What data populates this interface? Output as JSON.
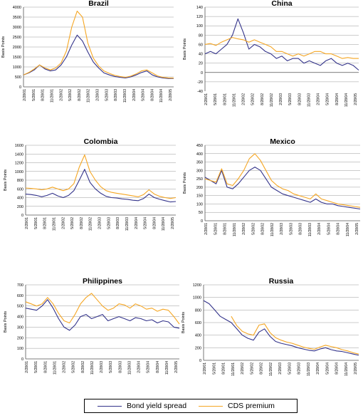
{
  "chart_data": [
    {
      "type": "line",
      "title": "Brazil",
      "ylabel": "Basis Points",
      "ylim": [
        0,
        4000
      ],
      "yticks": [
        "0",
        "500",
        "1000",
        "1500",
        "2000",
        "2500",
        "3000",
        "3500",
        "4000"
      ],
      "xticks": [
        "2/28/01",
        "5/28/01",
        "8/28/01",
        "11/28/01",
        "2/28/02",
        "5/28/02",
        "8/28/02",
        "11/28/02",
        "2/28/03",
        "5/28/03",
        "8/28/03",
        "11/28/03",
        "2/28/04",
        "5/28/04",
        "8/28/04",
        "11/28/04",
        "2/28/05"
      ],
      "series": [
        {
          "name": "Bond yield spread",
          "values": [
            600,
            700,
            850,
            1100,
            900,
            800,
            850,
            1100,
            1500,
            2100,
            2600,
            2300,
            1750,
            1250,
            950,
            700,
            600,
            520,
            480,
            450,
            500,
            600,
            720,
            800,
            600,
            500,
            450,
            420,
            420
          ]
        },
        {
          "name": "CDS premium",
          "values": [
            600,
            720,
            900,
            1100,
            950,
            850,
            950,
            1200,
            1800,
            3000,
            3800,
            3500,
            2200,
            1450,
            1050,
            800,
            680,
            580,
            520,
            480,
            540,
            650,
            800,
            850,
            700,
            550,
            480,
            450,
            440
          ]
        }
      ]
    },
    {
      "type": "line",
      "title": "China",
      "ylabel": "Basis Points",
      "ylim": [
        -40,
        140
      ],
      "yticks": [
        "-40",
        "-20",
        "0",
        "20",
        "40",
        "60",
        "80",
        "100",
        "120",
        "140"
      ],
      "xticks": [
        "2/28/01",
        "5/28/01",
        "8/28/01",
        "11/28/01",
        "2/28/02",
        "5/28/02",
        "8/28/02",
        "11/28/02",
        "2/28/03",
        "5/28/03",
        "8/28/03",
        "11/28/03",
        "2/28/04",
        "5/28/04",
        "8/28/04",
        "11/28/04",
        "2/28/05"
      ],
      "series": [
        {
          "name": "Bond yield spread",
          "values": [
            40,
            45,
            40,
            50,
            60,
            80,
            115,
            85,
            50,
            60,
            55,
            45,
            40,
            30,
            35,
            25,
            30,
            30,
            20,
            25,
            20,
            15,
            25,
            30,
            20,
            15,
            20,
            15,
            5
          ]
        },
        {
          "name": "CDS premium",
          "values": [
            60,
            62,
            58,
            65,
            70,
            75,
            72,
            70,
            65,
            70,
            65,
            60,
            55,
            45,
            45,
            40,
            35,
            40,
            35,
            40,
            45,
            45,
            40,
            40,
            35,
            30,
            32,
            30,
            30
          ]
        }
      ]
    },
    {
      "type": "line",
      "title": "Colombia",
      "ylabel": "Basis Points",
      "ylim": [
        0,
        1600
      ],
      "yticks": [
        "0",
        "200",
        "400",
        "600",
        "800",
        "1000",
        "1200",
        "1400",
        "1600"
      ],
      "xticks": [
        "2/28/01",
        "5/28/01",
        "8/28/01",
        "11/28/01",
        "2/28/02",
        "5/28/02",
        "8/28/02",
        "11/28/02",
        "2/28/03",
        "5/28/03",
        "8/28/03",
        "11/28/03",
        "2/28/04",
        "5/28/04",
        "8/28/04",
        "11/28/04",
        "2/28/05"
      ],
      "series": [
        {
          "name": "Bond yield spread",
          "values": [
            480,
            470,
            450,
            420,
            450,
            500,
            440,
            400,
            450,
            560,
            800,
            1050,
            750,
            600,
            500,
            430,
            400,
            390,
            370,
            360,
            340,
            330,
            380,
            480,
            400,
            360,
            330,
            300,
            310
          ]
        },
        {
          "name": "CDS premium",
          "values": [
            620,
            610,
            600,
            580,
            600,
            640,
            600,
            560,
            600,
            720,
            1100,
            1380,
            1000,
            800,
            650,
            560,
            520,
            500,
            480,
            460,
            440,
            420,
            470,
            580,
            480,
            430,
            400,
            380,
            400
          ]
        }
      ]
    },
    {
      "type": "line",
      "title": "Mexico",
      "ylabel": "Basis Points",
      "ylim": [
        0,
        450
      ],
      "yticks": [
        "0",
        "50",
        "100",
        "150",
        "200",
        "250",
        "300",
        "350",
        "400",
        "450"
      ],
      "xticks": [
        "2/28/01",
        "5/28/01",
        "8/28/01",
        "11/28/01",
        "2/28/02",
        "5/28/02",
        "8/28/02",
        "11/28/02",
        "2/28/03",
        "5/28/03",
        "8/28/03",
        "11/28/03",
        "2/28/04",
        "5/28/04",
        "8/28/04",
        "11/28/04",
        "2/28/05"
      ],
      "series": [
        {
          "name": "Bond yield spread",
          "values": [
            260,
            240,
            220,
            300,
            200,
            190,
            220,
            260,
            300,
            320,
            300,
            250,
            200,
            180,
            160,
            150,
            140,
            130,
            120,
            110,
            130,
            110,
            100,
            100,
            90,
            85,
            80,
            75,
            70
          ]
        },
        {
          "name": "CDS premium",
          "values": [
            250,
            240,
            230,
            310,
            220,
            210,
            250,
            300,
            370,
            400,
            360,
            300,
            240,
            210,
            190,
            180,
            160,
            150,
            140,
            130,
            160,
            130,
            120,
            110,
            100,
            95,
            90,
            85,
            80
          ]
        }
      ]
    },
    {
      "type": "line",
      "title": "Philippines",
      "ylabel": "Basis Points",
      "ylim": [
        0,
        700
      ],
      "yticks": [
        "0",
        "100",
        "200",
        "300",
        "400",
        "500",
        "600",
        "700"
      ],
      "xticks": [
        "2/28/01",
        "5/28/01",
        "8/28/01",
        "11/28/01",
        "2/28/02",
        "5/28/02",
        "8/28/02",
        "11/28/02",
        "2/28/03",
        "5/28/03",
        "8/28/03",
        "11/28/03",
        "2/28/04",
        "5/28/04",
        "8/28/04",
        "11/28/04",
        "2/28/05"
      ],
      "series": [
        {
          "name": "Bond yield spread",
          "values": [
            480,
            470,
            460,
            500,
            560,
            480,
            380,
            300,
            270,
            320,
            400,
            420,
            380,
            400,
            420,
            360,
            380,
            400,
            380,
            360,
            390,
            380,
            360,
            370,
            340,
            360,
            350,
            300,
            290
          ]
        },
        {
          "name": "CDS premium",
          "values": [
            540,
            520,
            500,
            520,
            580,
            520,
            430,
            360,
            340,
            420,
            520,
            580,
            620,
            560,
            500,
            460,
            480,
            520,
            510,
            480,
            520,
            500,
            470,
            480,
            450,
            470,
            460,
            400,
            330
          ]
        }
      ]
    },
    {
      "type": "line",
      "title": "Russia",
      "ylabel": "Basis Points",
      "ylim": [
        0,
        1200
      ],
      "yticks": [
        "0",
        "200",
        "400",
        "600",
        "800",
        "1000",
        "1200"
      ],
      "xticks": [
        "2/28/01",
        "5/28/01",
        "8/28/01",
        "11/28/01",
        "2/28/02",
        "5/28/02",
        "8/28/02",
        "11/28/02",
        "2/28/03",
        "5/28/03",
        "8/28/03",
        "11/28/03",
        "2/28/04",
        "5/28/04",
        "8/28/04",
        "11/28/04",
        "2/28/05"
      ],
      "series": [
        {
          "name": "Bond yield spread",
          "values": [
            950,
            900,
            800,
            700,
            650,
            600,
            500,
            400,
            350,
            320,
            450,
            500,
            380,
            300,
            270,
            250,
            230,
            200,
            180,
            160,
            150,
            180,
            200,
            170,
            150,
            140,
            120,
            100,
            80
          ]
        },
        {
          "name": "CDS premium",
          "values": [
            null,
            null,
            null,
            null,
            null,
            700,
            550,
            460,
            420,
            400,
            560,
            580,
            440,
            360,
            320,
            290,
            270,
            240,
            210,
            190,
            175,
            210,
            240,
            220,
            200,
            170,
            150,
            120,
            100
          ]
        }
      ]
    }
  ],
  "legend": [
    {
      "label": "Bond yield spread",
      "color": "#33338a"
    },
    {
      "label": "CDS premium",
      "color": "#f5a623"
    }
  ]
}
